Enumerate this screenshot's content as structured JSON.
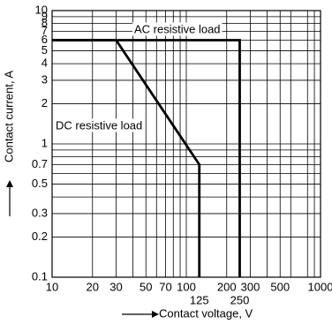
{
  "chart_data": {
    "type": "line",
    "log_x": true,
    "log_y": true,
    "grid": true,
    "x_label": "Contact voltage, V",
    "y_label": "Contact current, A",
    "xlim": [
      10,
      1000
    ],
    "ylim": [
      0.1,
      10
    ],
    "xticks": [
      10,
      20,
      30,
      50,
      70,
      100,
      200,
      300,
      500,
      1000
    ],
    "xticks_secondary": [
      125,
      250
    ],
    "x_minor_grid": [
      40,
      60,
      80,
      90,
      400,
      600,
      800,
      900
    ],
    "yticks": [
      0.1,
      0.2,
      0.3,
      0.5,
      0.7,
      1,
      2,
      3,
      4,
      5,
      6,
      7,
      8,
      9,
      10
    ],
    "y_minor_grid": [
      0.4,
      0.6,
      0.8,
      0.9
    ],
    "series": [
      {
        "name": "AC resistive load",
        "color": "#000000",
        "x": [
          10,
          250,
          250
        ],
        "values": [
          6,
          6,
          0.1
        ]
      },
      {
        "name": "DC resistive load",
        "color": "#000000",
        "x": [
          10,
          30,
          125,
          125
        ],
        "values": [
          6,
          6,
          0.7,
          0.1
        ]
      }
    ]
  }
}
